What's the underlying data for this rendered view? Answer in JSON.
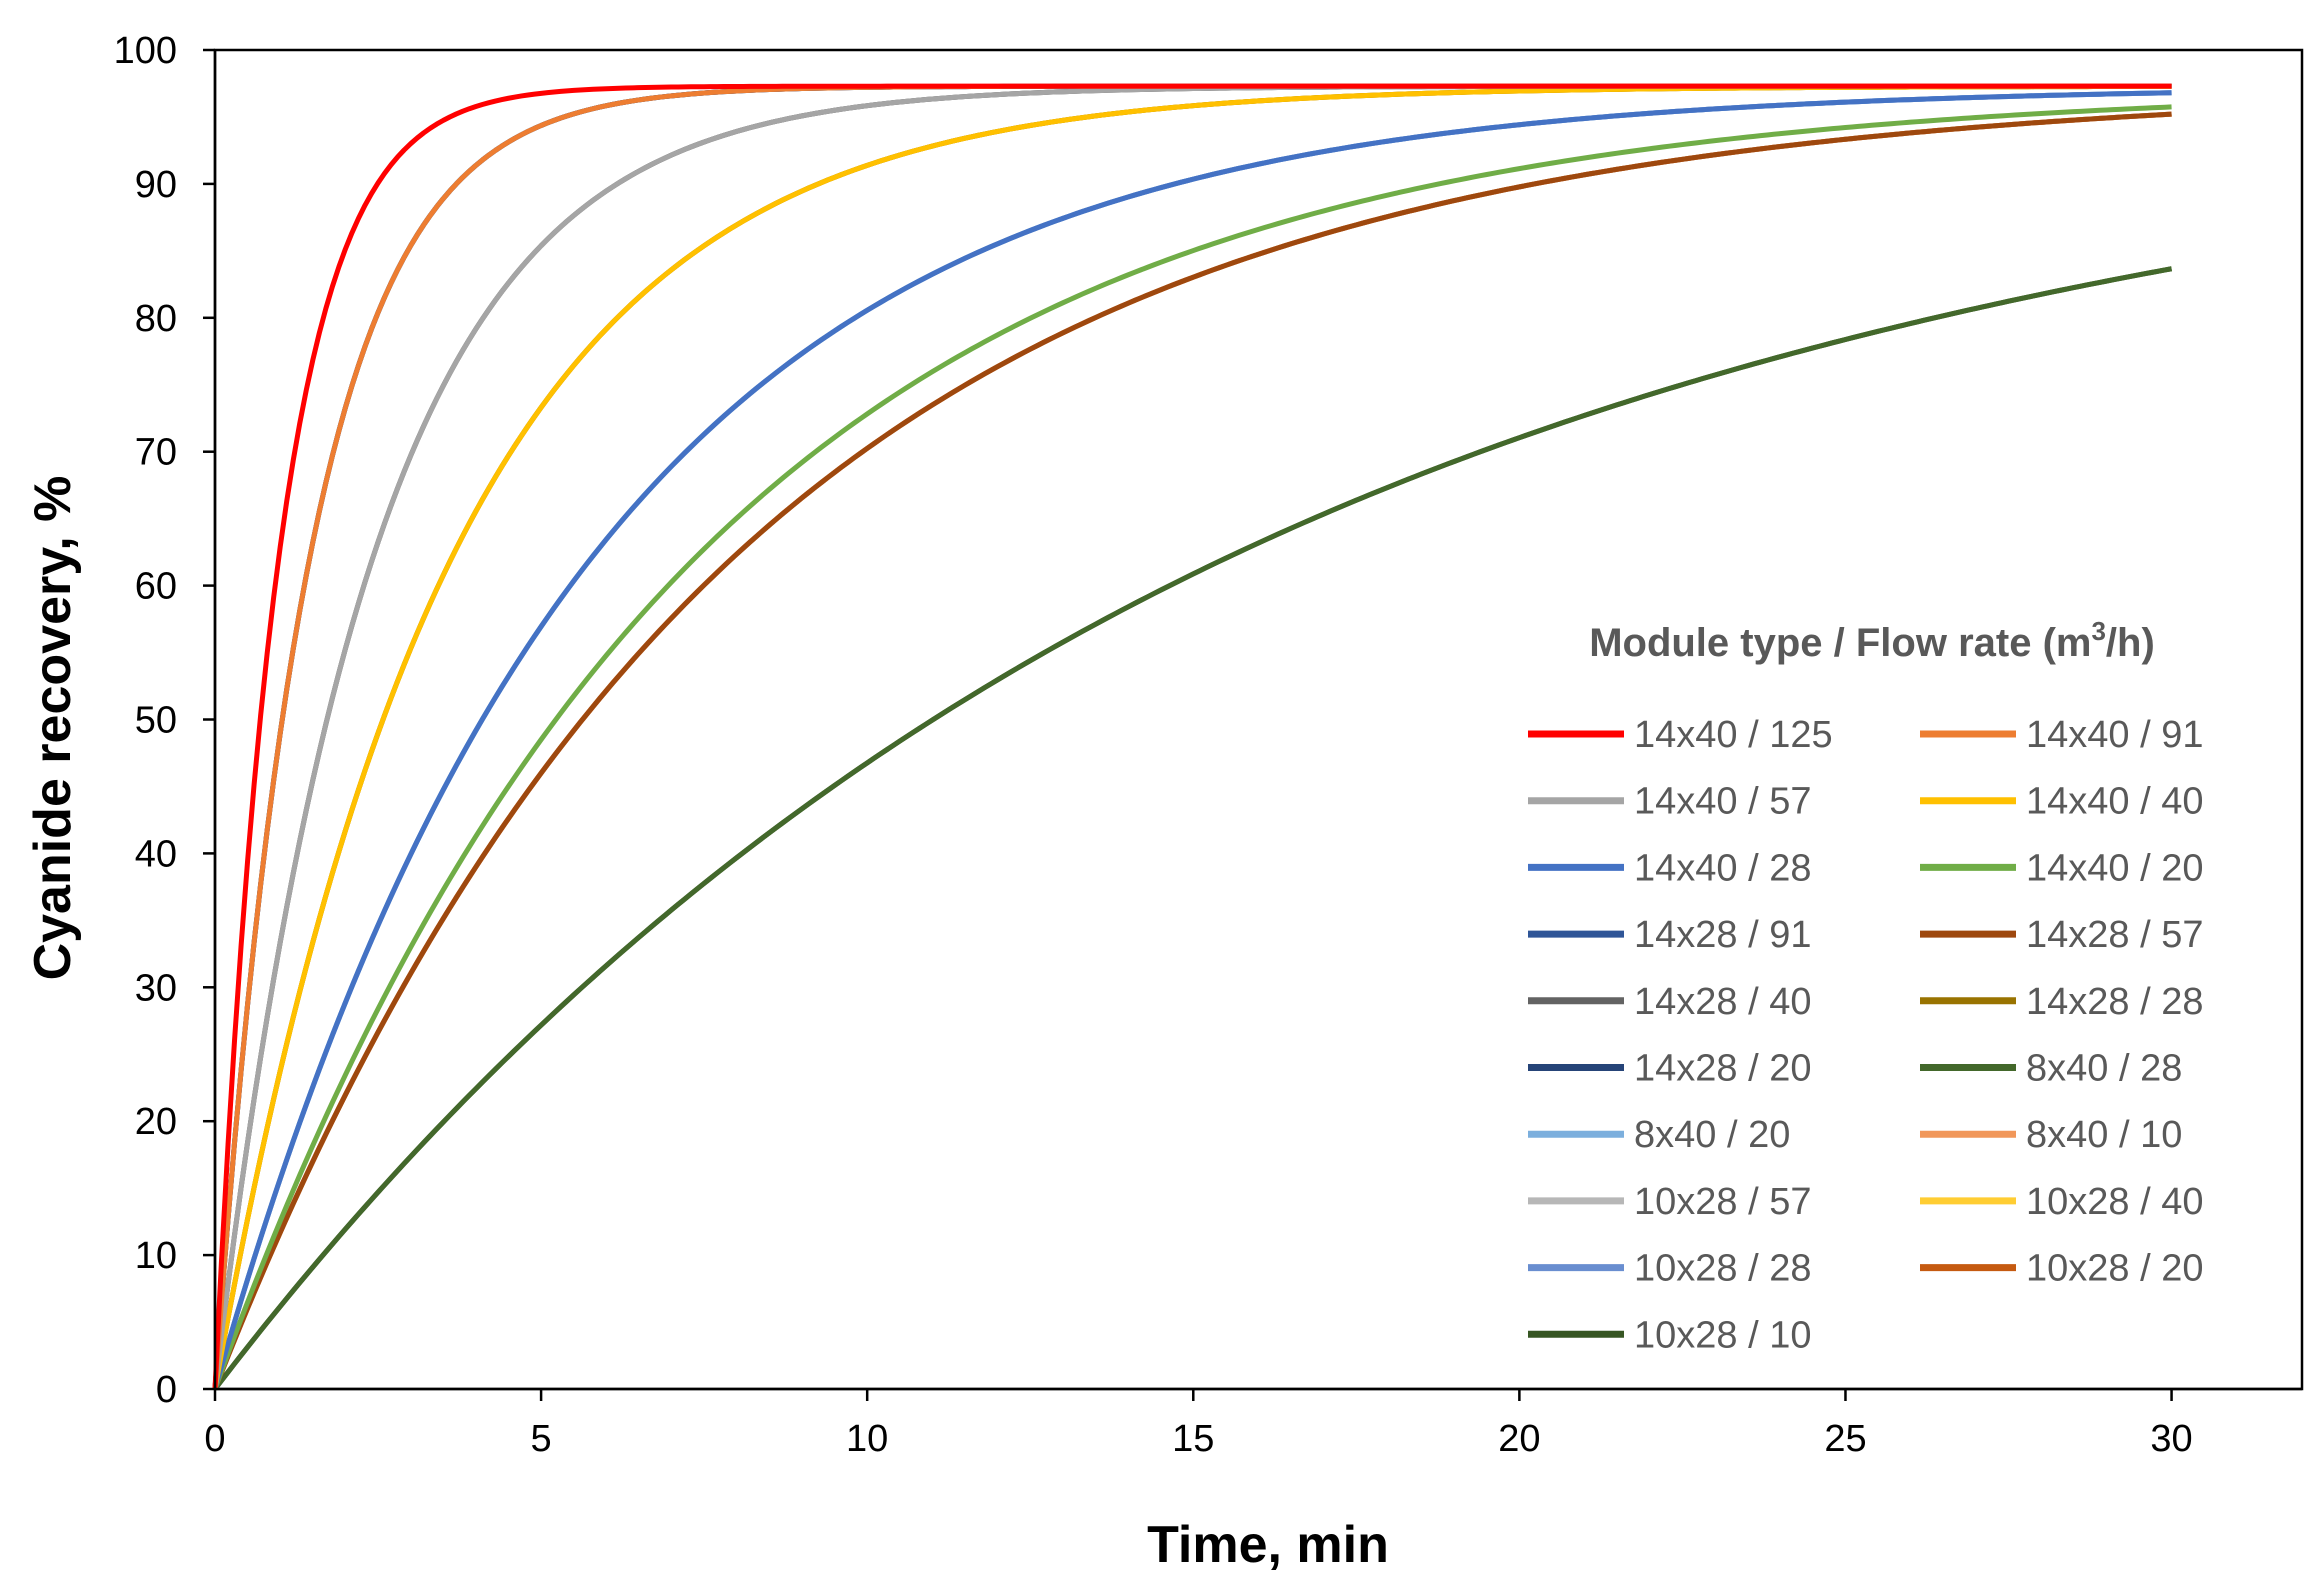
{
  "chart_data": {
    "type": "line",
    "title": "",
    "xlabel": "Time, min",
    "ylabel": "Cyanide recovery, %",
    "xlim": [
      0,
      32
    ],
    "ylim": [
      0,
      100
    ],
    "xticks": [
      0,
      5,
      10,
      15,
      20,
      25,
      30
    ],
    "yticks": [
      0,
      10,
      20,
      30,
      40,
      50,
      60,
      70,
      80,
      90,
      100
    ],
    "grid": false,
    "legend": {
      "title_main": "Module type / Flow rate (m",
      "title_sup": "3",
      "title_end": "/h)",
      "position": "center-right",
      "columns": 2
    },
    "model": "y = plateau * (1 - exp(-k * t)), sampled at t = 0..30 min",
    "series": [
      {
        "name": "14x40 / 125",
        "color": "#FF0000",
        "plateau": 97.3,
        "k": 1.04
      },
      {
        "name": "14x40 / 91",
        "color": "#ED7D31",
        "plateau": 97.3,
        "k": 0.7
      },
      {
        "name": "14x40 / 57",
        "color": "#A5A5A5",
        "plateau": 97.3,
        "k": 0.42
      },
      {
        "name": "14x40 / 40",
        "color": "#FFC000",
        "plateau": 97.3,
        "k": 0.28
      },
      {
        "name": "14x40 / 28",
        "color": "#4472C4",
        "plateau": 97.3,
        "k": 0.176
      },
      {
        "name": "14x40 / 20",
        "color": "#70AD47",
        "plateau": 97.3,
        "k": 0.138
      },
      {
        "name": "14x28 / 91",
        "color": "#2F5597",
        "plateau": 97.3,
        "k": 0.7
      },
      {
        "name": "14x28 / 57",
        "color": "#9E480E",
        "plateau": 97.3,
        "k": 0.128
      },
      {
        "name": "14x28 / 40",
        "color": "#636363",
        "plateau": 97.3,
        "k": 0.42
      },
      {
        "name": "14x28 / 28",
        "color": "#997300",
        "plateau": 97.3,
        "k": 0.28
      },
      {
        "name": "14x28 / 20",
        "color": "#264478",
        "plateau": 97.3,
        "k": 0.7
      },
      {
        "name": "8x40 / 28",
        "color": "#43682B",
        "plateau": 97.3,
        "k": 0.0655
      },
      {
        "name": "8x40 / 20",
        "color": "#7CAFDD",
        "plateau": 97.3,
        "k": 0.176
      },
      {
        "name": "8x40 / 10",
        "color": "#F1975A",
        "plateau": 97.3,
        "k": 0.128
      },
      {
        "name": "10x28 / 57",
        "color": "#B7B7B7",
        "plateau": 97.3,
        "k": 0.42
      },
      {
        "name": "10x28 / 40",
        "color": "#FFCD33",
        "plateau": 97.3,
        "k": 0.28
      },
      {
        "name": "10x28 / 28",
        "color": "#698ED0",
        "plateau": 97.3,
        "k": 0.176
      },
      {
        "name": "10x28 / 20",
        "color": "#C55A11",
        "plateau": 97.3,
        "k": 0.128
      },
      {
        "name": "10x28 / 10",
        "color": "#375623",
        "plateau": 97.3,
        "k": 0.0655
      }
    ]
  }
}
